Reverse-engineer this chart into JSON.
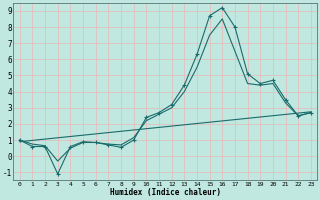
{
  "xlabel": "Humidex (Indice chaleur)",
  "background_color": "#c0e8e0",
  "grid_color": "#e8b8b8",
  "line_color": "#1a6b6b",
  "xlim": [
    -0.5,
    23.5
  ],
  "ylim": [
    -1.5,
    9.5
  ],
  "xticks": [
    0,
    1,
    2,
    3,
    4,
    5,
    6,
    7,
    8,
    9,
    10,
    11,
    12,
    13,
    14,
    15,
    16,
    17,
    18,
    19,
    20,
    21,
    22,
    23
  ],
  "yticks": [
    -1,
    0,
    1,
    2,
    3,
    4,
    5,
    6,
    7,
    8,
    9
  ],
  "curve_x": [
    0,
    1,
    2,
    3,
    4,
    5,
    6,
    7,
    8,
    9,
    10,
    11,
    12,
    13,
    14,
    15,
    16,
    17,
    18,
    19,
    20,
    21,
    22,
    23
  ],
  "curve_y": [
    1.0,
    0.6,
    0.6,
    -1.1,
    0.6,
    0.9,
    0.85,
    0.7,
    0.55,
    1.0,
    2.4,
    2.7,
    3.2,
    4.4,
    6.3,
    8.7,
    9.2,
    8.0,
    5.1,
    4.5,
    4.7,
    3.5,
    2.5,
    2.7
  ],
  "smooth_x": [
    0,
    1,
    2,
    3,
    4,
    5,
    6,
    7,
    8,
    9,
    10,
    11,
    12,
    13,
    14,
    15,
    16,
    17,
    18,
    19,
    20,
    21,
    22,
    23
  ],
  "smooth_y": [
    1.0,
    0.75,
    0.65,
    -0.3,
    0.5,
    0.85,
    0.85,
    0.75,
    0.7,
    1.15,
    2.2,
    2.6,
    3.0,
    4.0,
    5.5,
    7.5,
    8.5,
    6.5,
    4.5,
    4.4,
    4.5,
    3.3,
    2.5,
    2.7
  ],
  "line_x": [
    0,
    23
  ],
  "line_y": [
    0.9,
    2.75
  ],
  "font_family": "monospace"
}
